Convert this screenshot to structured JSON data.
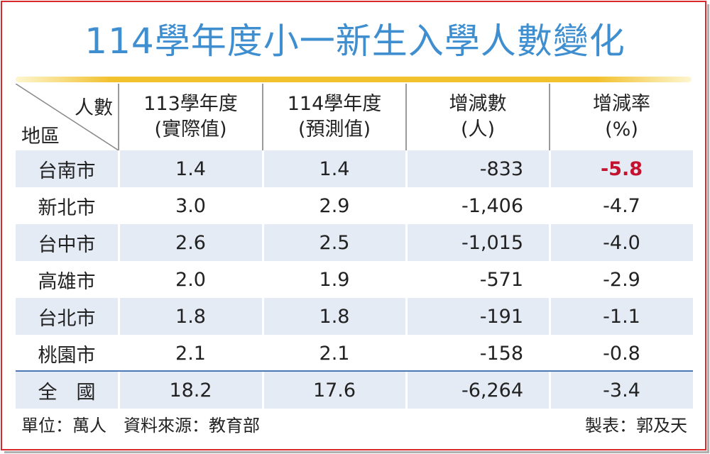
{
  "title": "114學年度小一新生入學人數變化",
  "header": {
    "corner_top": "人數",
    "corner_bottom": "地區",
    "col1": [
      "113學年度",
      "(實際值)"
    ],
    "col2": [
      "114學年度",
      "(預測值)"
    ],
    "col3": [
      "增減數",
      "(人)"
    ],
    "col4": [
      "增減率",
      "(%)"
    ]
  },
  "rows": [
    {
      "region": "台南市",
      "y113": "1.4",
      "y114": "1.4",
      "change": "-833",
      "rate": "-5.8",
      "highlight": true
    },
    {
      "region": "新北市",
      "y113": "3.0",
      "y114": "2.9",
      "change": "-1,406",
      "rate": "-4.7"
    },
    {
      "region": "台中市",
      "y113": "2.6",
      "y114": "2.5",
      "change": "-1,015",
      "rate": "-4.0"
    },
    {
      "region": "高雄市",
      "y113": "2.0",
      "y114": "1.9",
      "change": "-571",
      "rate": "-2.9"
    },
    {
      "region": "台北市",
      "y113": "1.8",
      "y114": "1.8",
      "change": "-191",
      "rate": "-1.1"
    },
    {
      "region": "桃園市",
      "y113": "2.1",
      "y114": "2.1",
      "change": "-158",
      "rate": "-0.8"
    }
  ],
  "total": {
    "region": "全　國",
    "y113": "18.2",
    "y114": "17.6",
    "change": "-6,264",
    "rate": "-3.4"
  },
  "footer": {
    "left": "單位：萬人　資料來源：教育部",
    "right": "製表：郭及天"
  },
  "colors": {
    "title": "#3f8fd0",
    "frame": "#d8292f",
    "band": "#e4ebf5",
    "highlight": "#c4122f",
    "accent_line": "#f2c12e"
  }
}
